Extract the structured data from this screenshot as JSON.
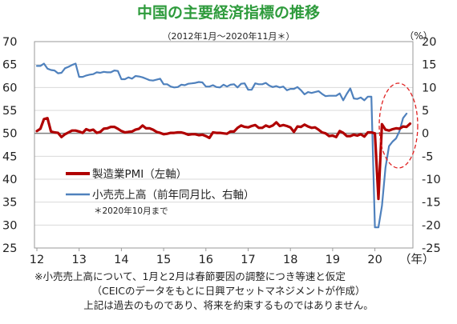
{
  "chart_data": {
    "type": "line",
    "title": "中国の主要経済指標の推移",
    "subtitle": "（2012年1月～2020年11月＊）",
    "right_unit": "（%）",
    "x_unit": "（年）",
    "x_tick_labels": [
      "12",
      "13",
      "14",
      "15",
      "16",
      "17",
      "18",
      "19",
      "20"
    ],
    "left_axis": {
      "min": 25,
      "max": 70,
      "ticks": [
        "70",
        "65",
        "60",
        "55",
        "50",
        "45",
        "40",
        "35",
        "30",
        "25"
      ]
    },
    "right_axis": {
      "min": -25,
      "max": 20,
      "ticks": [
        "20",
        "15",
        "10",
        "5",
        "0",
        "-5",
        "-10",
        "-15",
        "-20",
        "-25"
      ]
    },
    "reference_line": {
      "axis": "left",
      "value": 50
    },
    "highlight": {
      "shape": "dashed-ellipse",
      "color": "#e02020",
      "around": "2020 recovery"
    },
    "series": [
      {
        "name": "製造業PMI（左軸）",
        "axis": "left",
        "color": "#b00000",
        "start": "2012-01",
        "values": [
          50.5,
          51.0,
          53.1,
          53.3,
          50.4,
          50.2,
          50.1,
          49.2,
          49.8,
          50.2,
          50.6,
          50.6,
          50.4,
          50.1,
          50.9,
          50.6,
          50.8,
          50.1,
          50.3,
          51.0,
          51.1,
          51.4,
          51.4,
          51.0,
          50.5,
          50.2,
          50.3,
          50.4,
          50.8,
          51.0,
          51.7,
          51.1,
          51.1,
          50.8,
          50.3,
          50.1,
          49.8,
          49.9,
          50.1,
          50.1,
          50.2,
          50.2,
          50.0,
          49.7,
          49.8,
          49.8,
          49.6,
          49.7,
          49.4,
          49.0,
          50.2,
          50.1,
          50.1,
          50.0,
          49.9,
          50.4,
          50.4,
          51.2,
          51.7,
          51.4,
          51.3,
          51.6,
          51.8,
          51.2,
          51.2,
          51.7,
          51.4,
          51.7,
          52.4,
          51.6,
          51.8,
          51.6,
          51.3,
          50.3,
          51.5,
          51.4,
          51.9,
          51.5,
          51.2,
          51.3,
          50.8,
          50.2,
          50.0,
          49.4,
          49.5,
          49.2,
          50.5,
          50.1,
          49.4,
          49.4,
          49.7,
          49.5,
          49.8,
          49.3,
          50.2,
          50.2,
          50.0,
          35.7,
          52.0,
          50.8,
          50.6,
          50.9,
          51.1,
          51.0,
          51.5,
          51.4,
          52.1
        ]
      },
      {
        "name": "小売売上高（前年同月比、右軸）",
        "axis": "right",
        "note": "＊2020年10月まで",
        "color": "#4f81bd",
        "start": "2012-01",
        "values": [
          14.7,
          14.7,
          15.2,
          14.1,
          13.8,
          13.7,
          13.1,
          13.2,
          14.2,
          14.5,
          14.9,
          15.2,
          12.3,
          12.3,
          12.6,
          12.8,
          12.9,
          13.3,
          13.2,
          13.4,
          13.3,
          13.3,
          13.7,
          13.6,
          11.8,
          11.8,
          12.2,
          11.9,
          12.5,
          12.4,
          12.2,
          11.9,
          11.6,
          11.5,
          11.7,
          11.9,
          10.7,
          10.7,
          10.2,
          10.0,
          10.1,
          10.6,
          10.5,
          10.8,
          10.9,
          11.0,
          11.2,
          11.1,
          10.2,
          10.2,
          10.5,
          10.1,
          10.0,
          10.6,
          10.2,
          10.6,
          10.7,
          10.0,
          10.8,
          10.9,
          9.5,
          9.5,
          10.9,
          10.7,
          10.7,
          11.0,
          10.4,
          10.1,
          10.3,
          10.0,
          10.2,
          9.4,
          9.7,
          9.7,
          10.1,
          9.4,
          8.5,
          9.0,
          8.8,
          9.0,
          9.2,
          8.6,
          8.1,
          8.2,
          8.2,
          8.2,
          8.7,
          7.2,
          8.6,
          9.8,
          7.6,
          7.5,
          7.8,
          7.2,
          8.0,
          8.0,
          -20.5,
          -20.5,
          -15.8,
          -7.5,
          -2.8,
          -1.8,
          -1.1,
          0.5,
          3.3,
          4.3
        ]
      }
    ]
  },
  "footnotes": [
    "※小売売上高について、1月と2月は春節要因の調整につき等速と仮定",
    "（CEICのデータをもとに日興アセットマネジメントが作成）",
    "上記は過去のものであり、将来を約束するものではありません。"
  ]
}
